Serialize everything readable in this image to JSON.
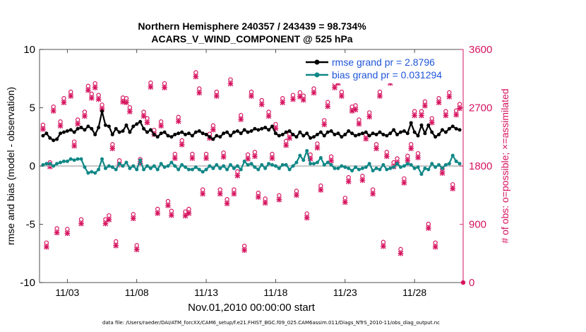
{
  "chart_data": {
    "type": "line",
    "title_line1": "Northern Hemisphere 240357 / 243439 = 98.734%",
    "title_line2": "ACARS_V_WIND_COMPONENT @ 525 hPa",
    "ylabel_left": "rmse and bias (model - observation)",
    "ylabel_right": "# of obs: o=possible; ×=assimilated",
    "xlabel": "Nov.01,2010 00:00:00 start",
    "footer": "data file: /Users/raeder/DAI/ATM_forcXX/CAM6_setup/f.e21.FHIST_BGC.f09_025.CAM6assim.011/Diags_NTrS_2010-11/obs_diag_output.nc",
    "x_range": [
      0.0,
      30.5
    ],
    "ylim_left": [
      -10,
      10
    ],
    "ylim_right": [
      0,
      3600
    ],
    "yticks_left": [
      -10,
      -5,
      0,
      5,
      10
    ],
    "yticks_right": [
      0,
      900,
      1800,
      2700,
      3600
    ],
    "xticks": [
      {
        "value": 2.0,
        "label": "11/03"
      },
      {
        "value": 7.0,
        "label": "11/08"
      },
      {
        "value": 12.0,
        "label": "11/13"
      },
      {
        "value": 17.0,
        "label": "11/18"
      },
      {
        "value": 22.0,
        "label": "11/23"
      },
      {
        "value": 27.0,
        "label": "11/28"
      }
    ],
    "colors": {
      "rmse": "#000000",
      "bias": "#0f8786",
      "obs": "#d6135f",
      "legend_text": "#1f55d8",
      "zero_line": "#b4b4b4"
    },
    "series": [
      {
        "name": "rmse grand pr = 2.8796",
        "key": "rmse",
        "values": [
          2.6,
          2.8,
          2.4,
          2.2,
          2.3,
          2.8,
          2.9,
          3.0,
          3.1,
          2.9,
          3.2,
          3.3,
          3.1,
          3.4,
          3.2,
          2.7,
          3.3,
          4.7,
          3.5,
          3.4,
          2.7,
          3.2,
          2.9,
          3.0,
          3.5,
          2.9,
          3.4,
          3.6,
          3.8,
          3.2,
          2.9,
          3.1,
          2.7,
          2.5,
          2.8,
          2.9,
          2.6,
          2.5,
          2.7,
          2.8,
          2.9,
          2.7,
          2.8,
          2.6,
          2.9,
          3.0,
          2.8,
          2.7,
          2.5,
          2.3,
          2.6,
          2.5,
          2.8,
          2.9,
          2.6,
          2.9,
          3.0,
          2.8,
          3.1,
          2.9,
          3.0,
          3.2,
          3.1,
          3.2,
          3.3,
          3.1,
          3.4,
          2.8,
          2.6,
          2.7,
          2.9,
          3.0,
          2.7,
          2.5,
          2.9,
          2.6,
          2.8,
          2.4,
          2.5,
          2.7,
          2.9,
          2.6,
          2.9,
          3.0,
          2.7,
          2.8,
          2.5,
          2.7,
          3.0,
          2.8,
          2.6,
          2.7,
          2.8,
          2.9,
          2.6,
          2.8,
          2.7,
          2.9,
          2.7,
          2.6,
          2.8,
          3.1,
          2.7,
          2.9,
          3.0,
          2.8,
          3.7,
          2.9,
          2.6,
          3.5,
          2.8,
          3.5,
          2.9,
          2.5,
          2.7,
          3.1,
          2.9,
          3.2,
          3.4,
          3.2,
          3.1
        ]
      },
      {
        "name": "bias grand pr = 0.031294",
        "key": "bias",
        "values": [
          0.1,
          0.2,
          0.2,
          0.0,
          0.2,
          0.3,
          0.4,
          0.4,
          0.6,
          0.5,
          0.6,
          0.6,
          -0.1,
          -0.6,
          -0.5,
          -0.6,
          -0.3,
          0.6,
          -0.2,
          0.0,
          -0.1,
          -0.3,
          0.2,
          0.0,
          0.3,
          -0.2,
          0.0,
          -0.3,
          0.5,
          -0.3,
          0.0,
          -0.2,
          0.0,
          -0.3,
          0.2,
          -0.1,
          0.0,
          0.3,
          0.0,
          -0.3,
          0.1,
          -0.1,
          -0.3,
          -0.3,
          -0.1,
          -0.3,
          -0.5,
          -0.3,
          0.0,
          -0.2,
          0.1,
          -0.2,
          0.0,
          -0.3,
          0.1,
          -0.2,
          0.0,
          -0.3,
          0.4,
          0.1,
          0.2,
          -0.1,
          -0.3,
          0.1,
          -0.2,
          0.2,
          0.1,
          0.0,
          -0.2,
          0.1,
          0.1,
          -0.3,
          0.0,
          0.3,
          0.9,
          0.5,
          1.3,
          0.2,
          0.2,
          0.3,
          0.7,
          0.1,
          0.3,
          0.1,
          -0.2,
          -0.2,
          0.0,
          -0.1,
          -0.2,
          -0.4,
          -0.1,
          -0.3,
          -0.2,
          -0.1,
          0.2,
          -0.4,
          -0.2,
          -0.3,
          0.1,
          -0.3,
          -0.2,
          -0.1,
          0.2,
          -0.1,
          0.0,
          0.2,
          0.1,
          -0.2,
          -0.1,
          -0.7,
          -0.2,
          -0.3,
          0.2,
          -0.1,
          0.1,
          -0.2,
          0.1,
          0.2,
          0.9,
          0.4,
          0.2
        ]
      },
      {
        "name": "obs possible",
        "key": "possible",
        "values": [
          2380,
          560,
          1800,
          2660,
          780,
          2430,
          2790,
          770,
          2890,
          2120,
          2460,
          920,
          2580,
          2980,
          2860,
          3020,
          2840,
          2690,
          920,
          980,
          2080,
          580,
          1830,
          2800,
          2790,
          2650,
          1000,
          520,
          1850,
          2580,
          2480,
          3030,
          2300,
          1080,
          2430,
          3020,
          1200,
          1050,
          1930,
          2500,
          2140,
          1040,
          1080,
          1930,
          3190,
          2940,
          1380,
          1930,
          2240,
          2370,
          2890,
          1380,
          1950,
          1230,
          3080,
          1380,
          1660,
          2530,
          510,
          1920,
          2890,
          1960,
          1330,
          2760,
          1240,
          2580,
          1930,
          2390,
          1290,
          2790,
          2130,
          2240,
          2840,
          1360,
          2880,
          2830,
          1010,
          1920,
          2940,
          2090,
          1440,
          2450,
          2730,
          1890,
          3020,
          3090,
          2890,
          1250,
          1570,
          2660,
          2680,
          2460,
          1590,
          2230,
          2570,
          1380,
          2080,
          2890,
          570,
          1960,
          3090,
          1800,
          1860,
          460,
          1550,
          1900,
          2080,
          2590,
          1940,
          2590,
          2740,
          850,
          2480,
          560,
          2790,
          1700,
          2590,
          2880,
          1460,
          2600,
          2700
        ]
      },
      {
        "name": "obs assimilated",
        "key": "assimilated",
        "values": [
          2370,
          550,
          1790,
          2650,
          770,
          2420,
          2780,
          760,
          2880,
          2110,
          2450,
          910,
          2570,
          2970,
          2850,
          3010,
          2830,
          2680,
          910,
          970,
          2070,
          570,
          1820,
          2790,
          2780,
          2640,
          990,
          510,
          1840,
          2570,
          2470,
          3020,
          2290,
          1070,
          2420,
          3010,
          1190,
          1040,
          1920,
          2490,
          2130,
          1030,
          1070,
          1920,
          3180,
          2930,
          1370,
          1920,
          2230,
          2360,
          2880,
          1370,
          1940,
          1220,
          3070,
          1370,
          1650,
          2520,
          500,
          1910,
          2880,
          1950,
          1320,
          2750,
          1230,
          2570,
          1920,
          2380,
          1280,
          2780,
          2120,
          2230,
          2830,
          1350,
          2870,
          2820,
          1000,
          1910,
          2930,
          2080,
          1430,
          2440,
          2720,
          1880,
          3010,
          3080,
          2880,
          1240,
          1560,
          2650,
          2670,
          2450,
          1580,
          2220,
          2560,
          1370,
          2070,
          2880,
          560,
          1950,
          3080,
          1790,
          1850,
          450,
          1540,
          1890,
          2070,
          2580,
          1930,
          2580,
          2730,
          840,
          2470,
          550,
          2780,
          1690,
          2580,
          2870,
          1450,
          2590,
          2690
        ]
      }
    ],
    "obs_last_point": {
      "day": 30.5,
      "value": 0
    },
    "legend": {
      "position": "top-right",
      "entries": [
        "rmse grand pr = 2.8796",
        "bias grand pr = 0.031294"
      ]
    },
    "grid": false
  }
}
